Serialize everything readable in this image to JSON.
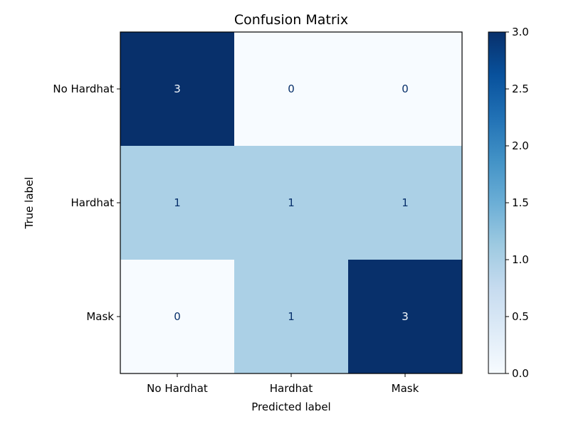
{
  "chart_data": {
    "type": "heatmap",
    "title": "Confusion Matrix",
    "xlabel": "Predicted label",
    "ylabel": "True label",
    "x_categories": [
      "No Hardhat",
      "Hardhat",
      "Mask"
    ],
    "y_categories": [
      "No Hardhat",
      "Hardhat",
      "Mask"
    ],
    "matrix": [
      [
        3,
        0,
        0
      ],
      [
        1,
        1,
        1
      ],
      [
        0,
        1,
        3
      ]
    ],
    "cell_labels": [
      [
        "3",
        "0",
        "0"
      ],
      [
        "1",
        "1",
        "1"
      ],
      [
        "0",
        "1",
        "3"
      ]
    ],
    "colormap": "Blues",
    "color_low": "#f7fbff",
    "color_high": "#08306b",
    "text_color_light": "#f7fbff",
    "text_color_dark": "#08306b",
    "colorbar": {
      "range": [
        0.0,
        3.0
      ],
      "ticks": [
        0.0,
        0.5,
        1.0,
        1.5,
        2.0,
        2.5,
        3.0
      ],
      "tick_labels": [
        "0.0",
        "0.5",
        "1.0",
        "1.5",
        "2.0",
        "2.5",
        "3.0"
      ]
    },
    "grid": false
  }
}
